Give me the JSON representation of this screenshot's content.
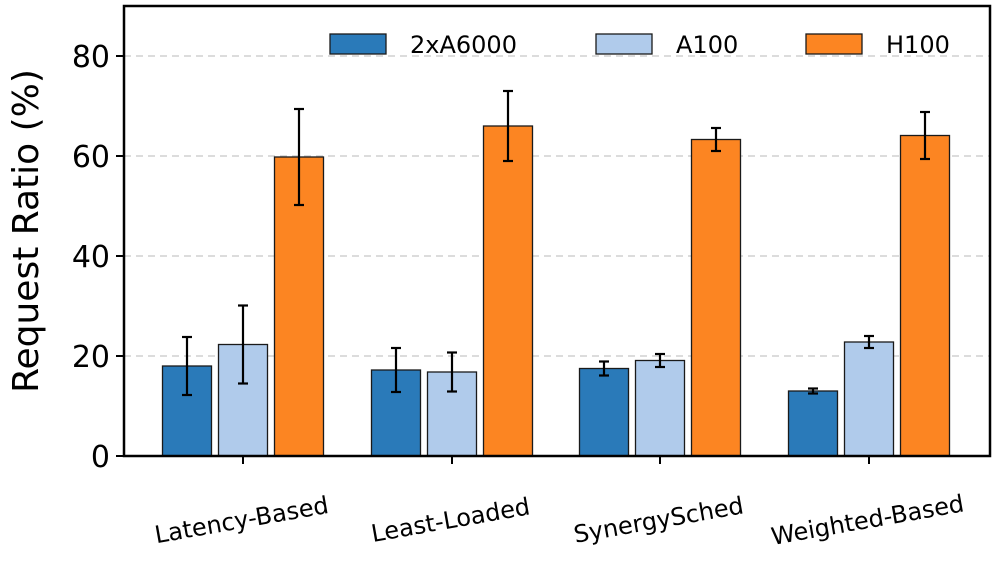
{
  "chart_data": {
    "type": "bar",
    "title": "",
    "xlabel": "",
    "ylabel": "Request Ratio (%)",
    "ylim": [
      0,
      90
    ],
    "yticks": [
      0,
      20,
      40,
      60,
      80
    ],
    "ytick_labels": [
      "0",
      "20",
      "40",
      "60",
      "80"
    ],
    "grid": "horizontal dashed",
    "legend_position": "top-right",
    "categories": [
      "Latency-Based",
      "Least-Loaded",
      "SynergySched",
      "Weighted-Based"
    ],
    "series": [
      {
        "name": "2xA6000",
        "color": "#2a7ab9",
        "values": [
          18.0,
          17.2,
          17.5,
          13.0
        ],
        "errors": [
          5.8,
          4.4,
          1.4,
          0.5
        ]
      },
      {
        "name": "A100",
        "color": "#b0cbeb",
        "values": [
          22.3,
          16.8,
          19.1,
          22.8
        ],
        "errors": [
          7.8,
          3.9,
          1.3,
          1.2
        ]
      },
      {
        "name": "H100",
        "color": "#fc8522",
        "values": [
          59.8,
          66.0,
          63.3,
          64.1
        ],
        "errors": [
          9.6,
          7.0,
          2.3,
          4.7
        ]
      }
    ]
  }
}
